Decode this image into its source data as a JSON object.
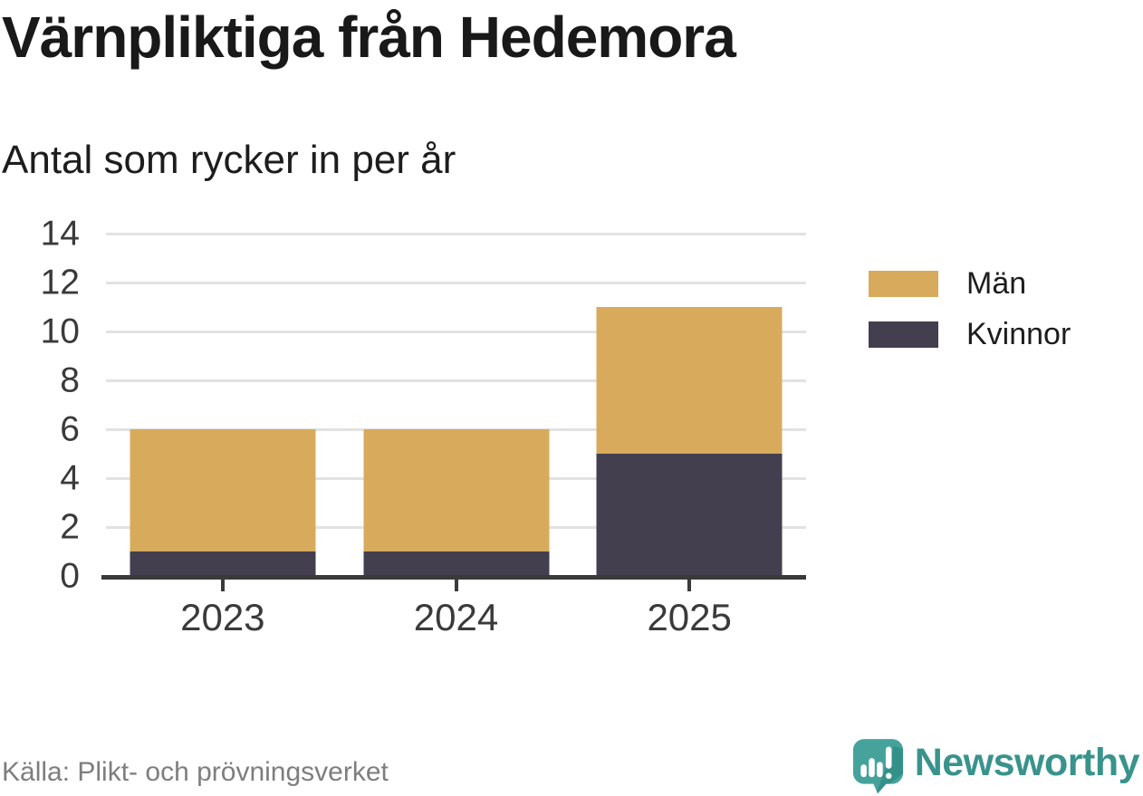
{
  "header": {
    "title": "Värnpliktiga från Hedemora",
    "subtitle": "Antal som rycker in per år"
  },
  "footer": {
    "source": "Källa: Plikt- och prövningsverket",
    "brand_name": "Newsworthy",
    "brand_icon": "newsworthy-bubble-chart-icon"
  },
  "colors": {
    "men": "#D8AB5C",
    "women": "#433F4E",
    "grid": "#E2E2E2",
    "axis": "#3A3A3A",
    "title_text": "#191919",
    "tick_text": "#3A3A3A",
    "source_text": "#7E7E7E",
    "brand_teal": "#39938C",
    "brand_mark_teal": "#46A39C",
    "brand_mark_shade": "#2F8B84"
  },
  "legend": {
    "items": [
      {
        "label": "Män",
        "color": "#D8AB5C"
      },
      {
        "label": "Kvinnor",
        "color": "#433F4E"
      }
    ]
  },
  "chart_data": {
    "type": "bar",
    "stacked": true,
    "title": "Värnpliktiga från Hedemora",
    "subtitle": "Antal som rycker in per år",
    "categories": [
      "2023",
      "2024",
      "2025"
    ],
    "series": [
      {
        "name": "Män",
        "color": "#D8AB5C",
        "values": [
          5,
          5,
          6
        ]
      },
      {
        "name": "Kvinnor",
        "color": "#433F4E",
        "values": [
          1,
          1,
          5
        ]
      }
    ],
    "stack_order_bottom_to_top": [
      "Kvinnor",
      "Män"
    ],
    "totals": [
      6,
      6,
      11
    ],
    "xlabel": "",
    "ylabel": "",
    "ylim": [
      0,
      14
    ],
    "yticks": [
      0,
      2,
      4,
      6,
      8,
      10,
      12,
      14
    ],
    "grid": true,
    "legend_position": "right"
  }
}
